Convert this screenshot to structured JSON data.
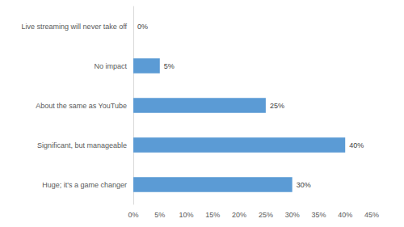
{
  "chart_data": {
    "type": "bar",
    "orientation": "horizontal",
    "categories": [
      "Live streaming will never take off",
      "No impact",
      "About the same as YouTube",
      "Significant, but manageable",
      "Huge; it's a game changer"
    ],
    "values": [
      0,
      5,
      25,
      40,
      30
    ],
    "value_labels": [
      "0%",
      "5%",
      "25%",
      "40%",
      "30%"
    ],
    "color": "#5b9bd5",
    "xlim": [
      0,
      45
    ],
    "xticks": [
      {
        "value": 0,
        "label": "0%"
      },
      {
        "value": 5,
        "label": "5%"
      },
      {
        "value": 10,
        "label": "10%"
      },
      {
        "value": 15,
        "label": "15%"
      },
      {
        "value": 20,
        "label": "20%"
      },
      {
        "value": 25,
        "label": "25%"
      },
      {
        "value": 30,
        "label": "30%"
      },
      {
        "value": 35,
        "label": "35%"
      },
      {
        "value": 40,
        "label": "40%"
      },
      {
        "value": 45,
        "label": "45%"
      }
    ],
    "grid": false,
    "data_labels": true
  }
}
